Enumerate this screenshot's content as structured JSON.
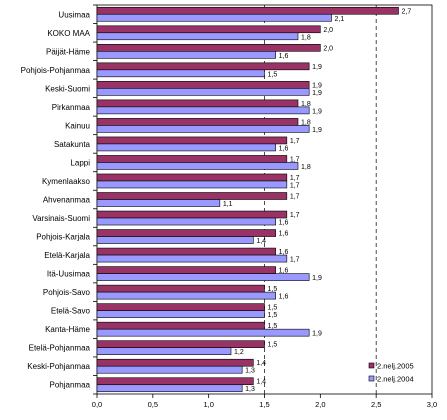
{
  "chart_data": {
    "type": "bar",
    "orientation": "horizontal",
    "title": "",
    "xlabel": "",
    "ylabel": "",
    "xlim": [
      0.0,
      3.0
    ],
    "x_ticks": [
      "0,0",
      "0,5",
      "1,0",
      "1,5",
      "2,0",
      "2,5",
      "3,0"
    ],
    "x_tick_values": [
      0,
      0.5,
      1.0,
      1.5,
      2.0,
      2.5,
      3.0
    ],
    "gridlines": "dashed vertical at 1,5 and 2,5",
    "legend_position": "bottom-right",
    "categories": [
      "Uusimaa",
      "KOKO MAA",
      "Päijät-Häme",
      "Pohjois-Pohjanmaa",
      "Keski-Suomi",
      "Pirkanmaa",
      "Kainuu",
      "Satakunta",
      "Lappi",
      "Kymenlaakso",
      "Ahvenanmaa",
      "Varsinais-Suomi",
      "Pohjois-Karjala",
      "Etelä-Karjala",
      "Itä-Uusimaa",
      "Pohjois-Savo",
      "Etelä-Savo",
      "Kanta-Häme",
      "Etelä-Pohjanmaa",
      "Keski-Pohjanmaa",
      "Pohjanmaa"
    ],
    "series": [
      {
        "name": "2.nelj.2005",
        "color": "#993366",
        "values": [
          2.7,
          2.0,
          2.0,
          1.9,
          1.9,
          1.8,
          1.8,
          1.7,
          1.7,
          1.7,
          1.7,
          1.7,
          1.6,
          1.6,
          1.6,
          1.5,
          1.5,
          1.5,
          1.5,
          1.4,
          1.4
        ],
        "labels": [
          "2,7",
          "2,0",
          "2,0",
          "1,9",
          "1,9",
          "1,8",
          "1,8",
          "1,7",
          "1,7",
          "1,7",
          "1,7",
          "1,7",
          "1,6",
          "1,6",
          "1,6",
          "1,5",
          "1,5",
          "1,5",
          "1,5",
          "1,4",
          "1,4"
        ]
      },
      {
        "name": "2.nelj.2004",
        "color": "#9999FF",
        "values": [
          2.1,
          1.8,
          1.6,
          1.5,
          1.9,
          1.9,
          1.9,
          1.6,
          1.8,
          1.7,
          1.1,
          1.6,
          1.4,
          1.7,
          1.9,
          1.6,
          1.5,
          1.9,
          1.2,
          1.3,
          1.3
        ],
        "labels": [
          "2,1",
          "1,8",
          "1,6",
          "1,5",
          "1,9",
          "1,9",
          "1,9",
          "1,6",
          "1,8",
          "1,7",
          "1,1",
          "1,6",
          "1,4",
          "1,7",
          "1,9",
          "1,6",
          "1,5",
          "1,9",
          "1,2",
          "1,3",
          "1,3"
        ]
      }
    ]
  }
}
